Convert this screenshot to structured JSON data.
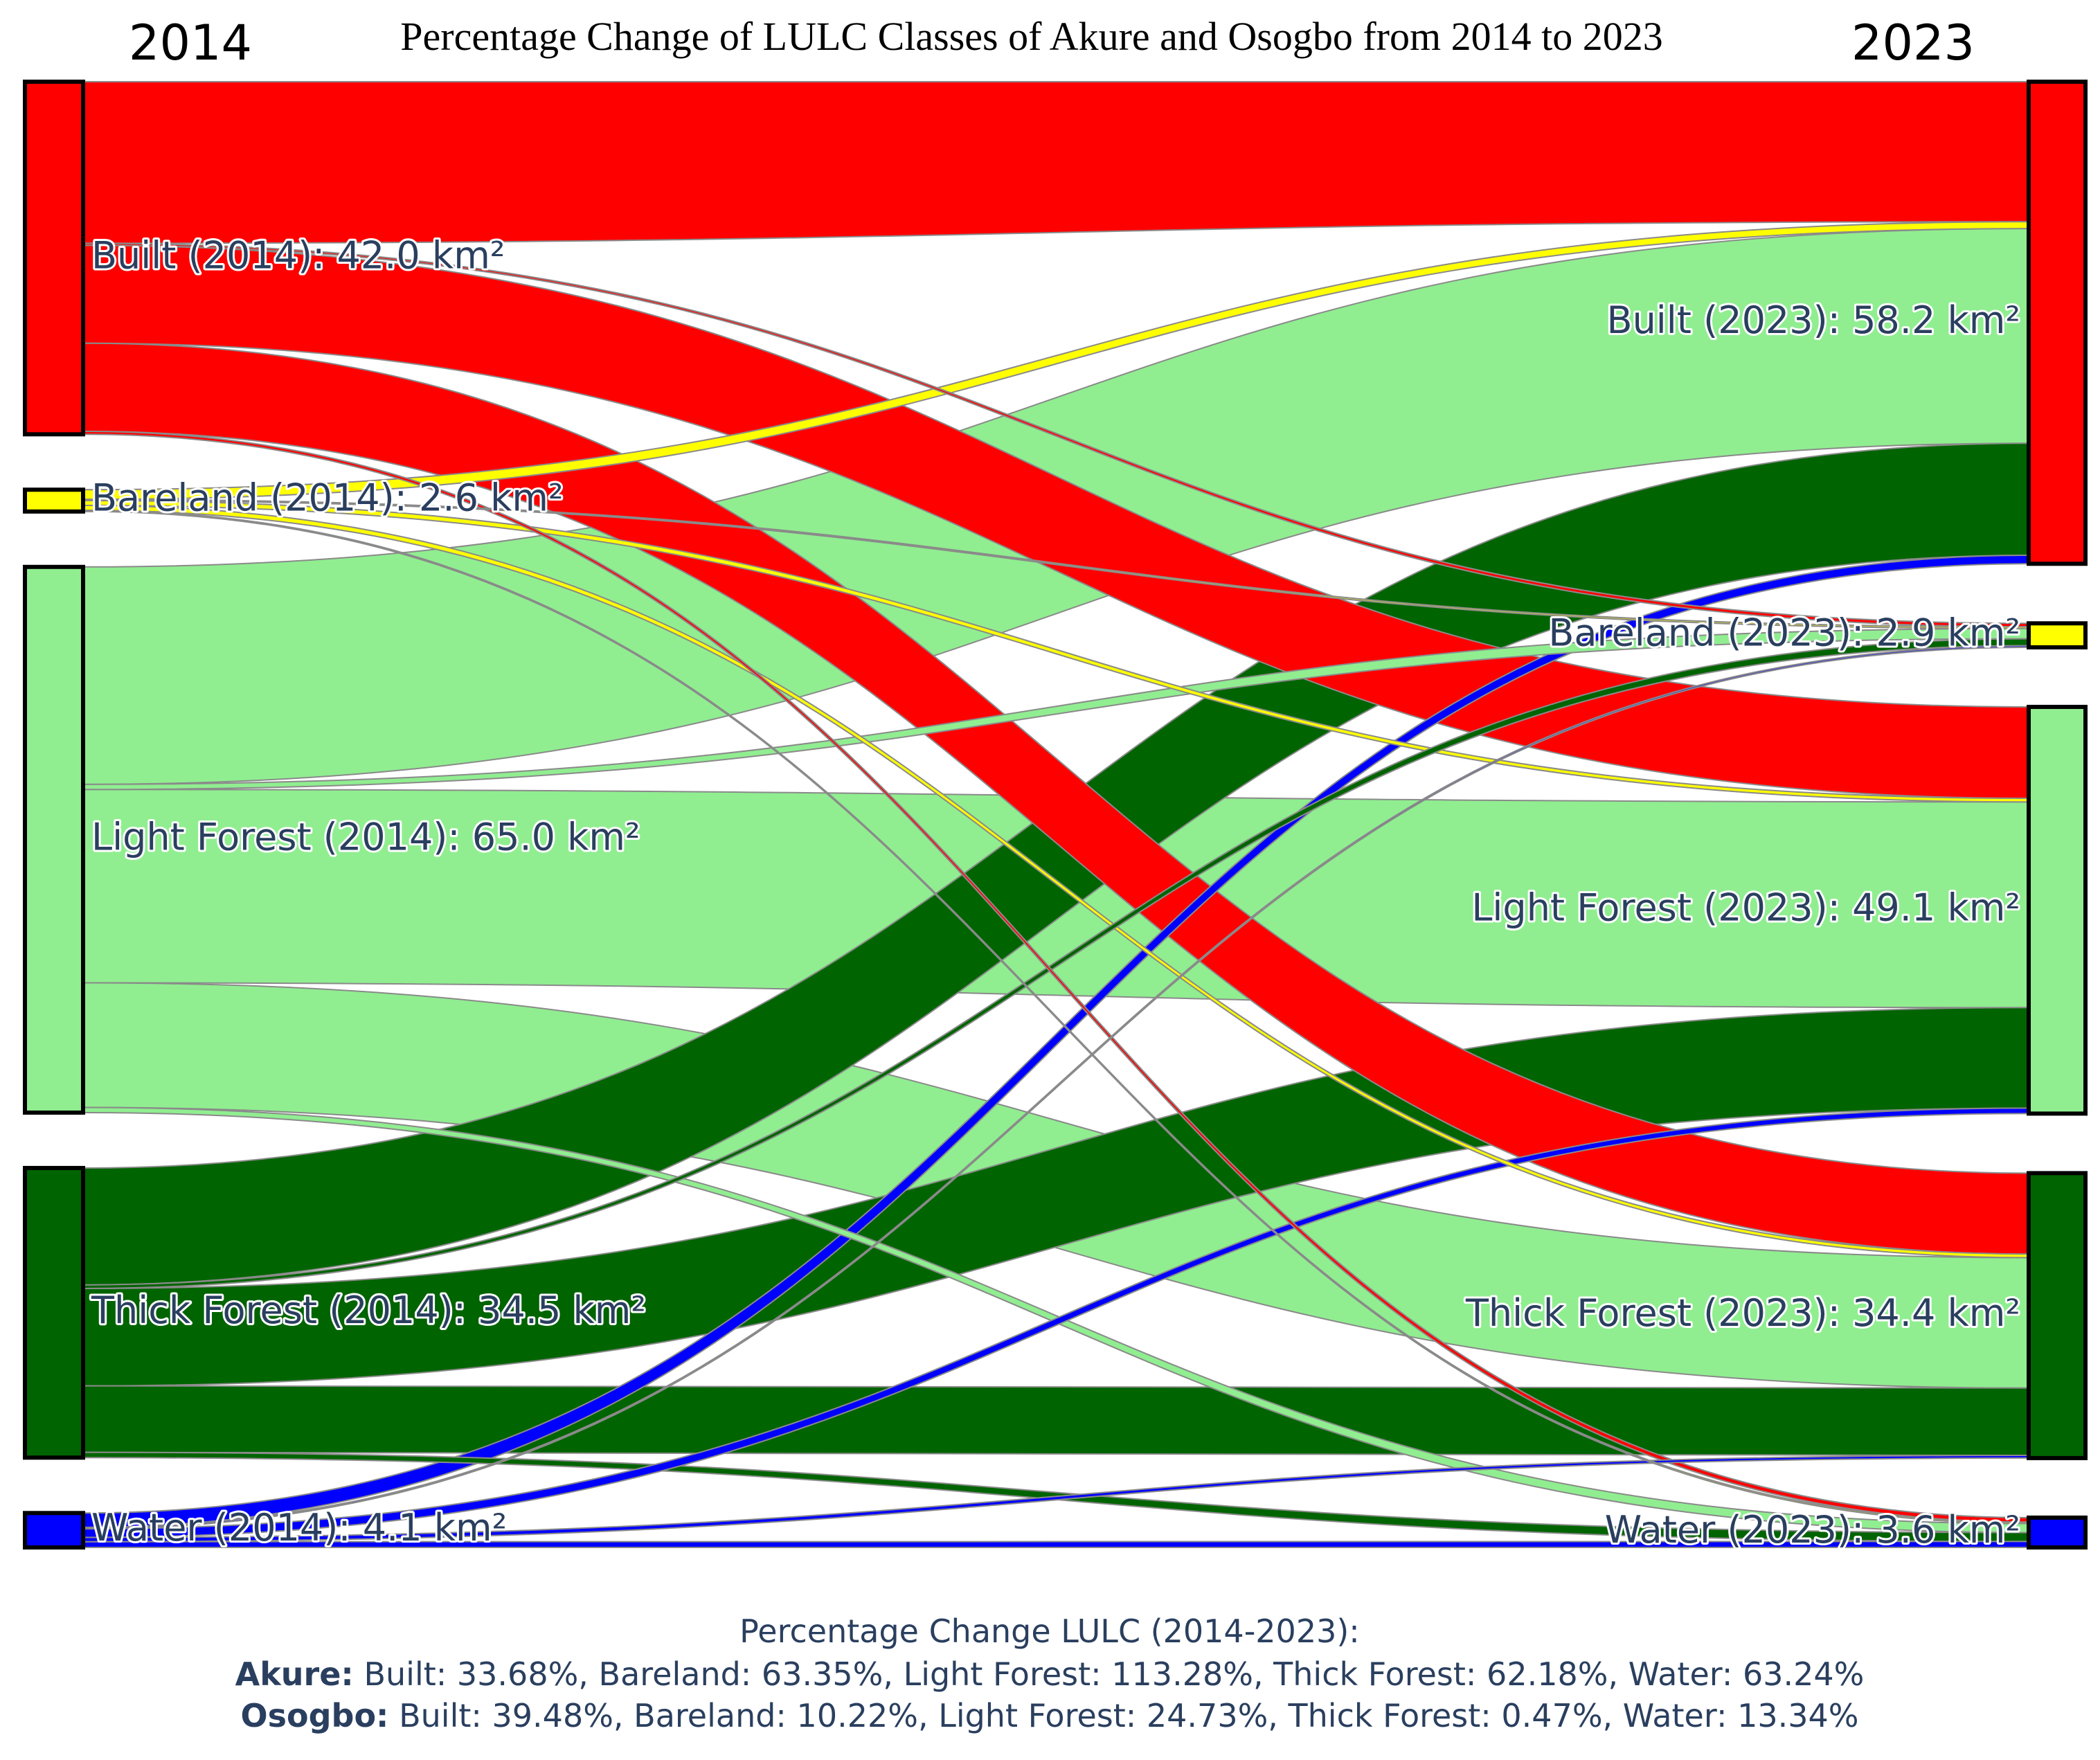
{
  "chart_data": {
    "type": "sankey",
    "title": "Percentage Change of LULC Classes of Akure and Osogbo from 2014 to 2023",
    "left_year": "2014",
    "right_year": "2023",
    "unit": "km²",
    "classes": [
      {
        "key": "built",
        "name": "Built",
        "color": "#ff0000"
      },
      {
        "key": "bareland",
        "name": "Bareland",
        "color": "#ffff00"
      },
      {
        "key": "light",
        "name": "Light Forest",
        "color": "#90ee90"
      },
      {
        "key": "thick",
        "name": "Thick Forest",
        "color": "#006400"
      },
      {
        "key": "water",
        "name": "Water",
        "color": "#0000ff"
      }
    ],
    "source_nodes": [
      {
        "key": "built",
        "label": "Built (2014): 42.0 km²",
        "value": 42.0
      },
      {
        "key": "bareland",
        "label": "Bareland (2014): 2.6 km²",
        "value": 2.6
      },
      {
        "key": "light",
        "label": "Light Forest (2014): 65.0 km²",
        "value": 65.0
      },
      {
        "key": "thick",
        "label": "Thick Forest (2014): 34.5 km²",
        "value": 34.5
      },
      {
        "key": "water",
        "label": "Water (2014): 4.1 km²",
        "value": 4.1
      }
    ],
    "target_nodes": [
      {
        "key": "built",
        "label": "Built (2023): 58.2 km²",
        "value": 58.2
      },
      {
        "key": "bareland",
        "label": "Bareland (2023): 2.9 km²",
        "value": 2.9
      },
      {
        "key": "light",
        "label": "Light Forest (2023): 49.1 km²",
        "value": 49.1
      },
      {
        "key": "thick",
        "label": "Thick Forest (2023): 34.4 km²",
        "value": 34.4
      },
      {
        "key": "water",
        "label": "Water (2023): 3.6 km²",
        "value": 3.6
      }
    ],
    "links": [
      {
        "source": "built",
        "target": "built",
        "value": 16.5
      },
      {
        "source": "built",
        "target": "bareland",
        "value": 0.2
      },
      {
        "source": "built",
        "target": "light",
        "value": 10.0
      },
      {
        "source": "built",
        "target": "thick",
        "value": 9.0
      },
      {
        "source": "built",
        "target": "water",
        "value": 0.3
      },
      {
        "source": "bareland",
        "target": "built",
        "value": 0.8
      },
      {
        "source": "bareland",
        "target": "bareland",
        "value": 0.1
      },
      {
        "source": "bareland",
        "target": "light",
        "value": 0.4
      },
      {
        "source": "bareland",
        "target": "thick",
        "value": 0.4
      },
      {
        "source": "bareland",
        "target": "water",
        "value": 0.1
      },
      {
        "source": "light",
        "target": "built",
        "value": 25.3
      },
      {
        "source": "light",
        "target": "bareland",
        "value": 0.6
      },
      {
        "source": "light",
        "target": "light",
        "value": 22.5
      },
      {
        "source": "light",
        "target": "thick",
        "value": 14.5
      },
      {
        "source": "light",
        "target": "water",
        "value": 0.6
      },
      {
        "source": "thick",
        "target": "built",
        "value": 13.2
      },
      {
        "source": "thick",
        "target": "bareland",
        "value": 0.4
      },
      {
        "source": "thick",
        "target": "light",
        "value": 11.0
      },
      {
        "source": "thick",
        "target": "thick",
        "value": 7.5
      },
      {
        "source": "thick",
        "target": "water",
        "value": 0.6
      },
      {
        "source": "water",
        "target": "built",
        "value": 1.0
      },
      {
        "source": "water",
        "target": "bareland",
        "value": 0.1
      },
      {
        "source": "water",
        "target": "light",
        "value": 0.6
      },
      {
        "source": "water",
        "target": "thick",
        "value": 0.3
      },
      {
        "source": "water",
        "target": "water",
        "value": 0.4
      }
    ],
    "annotation": {
      "heading": "Percentage Change LULC (2014-2023):",
      "rows": [
        {
          "city": "Akure:",
          "text": " Built: 33.68%, Bareland: 63.35%, Light Forest: 113.28%, Thick Forest: 62.18%, Water: 63.24%"
        },
        {
          "city": "Osogbo:",
          "text": " Built: 39.48%, Bareland: 10.22%, Light Forest: 24.73%, Thick Forest: 0.47%, Water: 13.34%"
        }
      ]
    }
  }
}
